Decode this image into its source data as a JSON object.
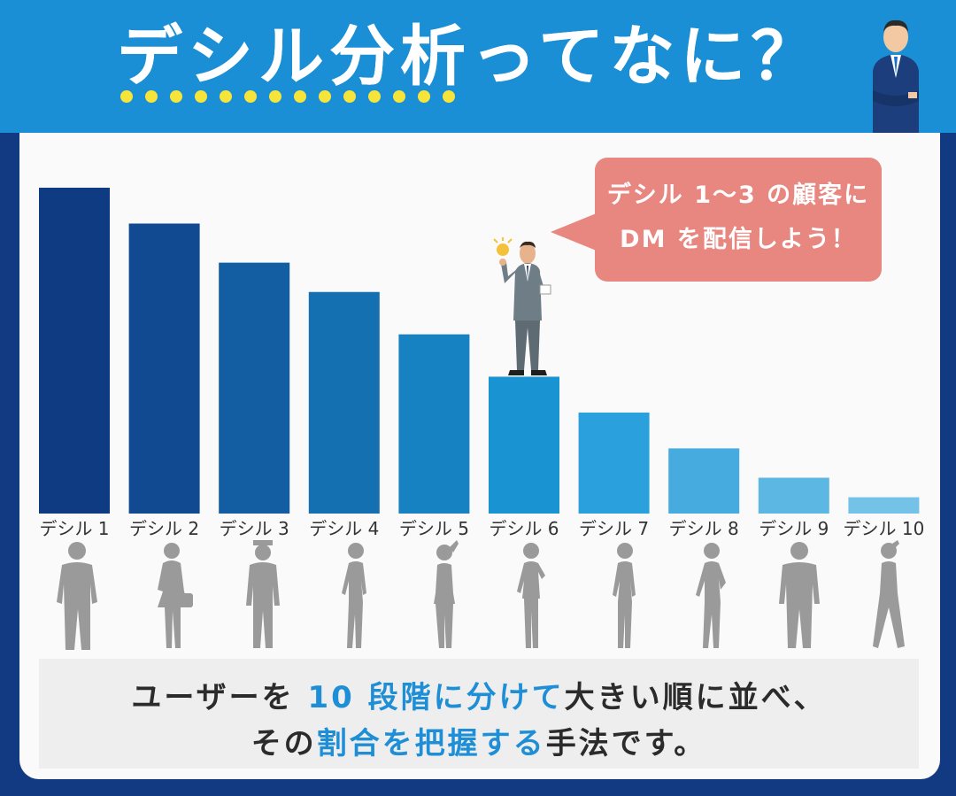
{
  "header": {
    "title": "デシル分析ってなに？"
  },
  "bubble": {
    "line1": "デシル 1〜3 の顧客に",
    "line2": "DM を配信しよう！"
  },
  "caption": {
    "line1_a": "ユーザーを ",
    "line1_b": "10 段階に分けて",
    "line1_c": "大きい順に並べ、",
    "line2_a": "その",
    "line2_b": "割合を把握する",
    "line2_c": "手法です。"
  },
  "colors": {
    "header": "#1a8fd6",
    "frame": "#123a82",
    "bubble": "#e88680",
    "highlight": "#1e8fd6",
    "dots": "#f7e43a"
  },
  "chart_data": {
    "type": "bar",
    "categories": [
      "デシル 1",
      "デシル 2",
      "デシル 3",
      "デシル 4",
      "デシル 5",
      "デシル 6",
      "デシル 7",
      "デシル 8",
      "デシル 9",
      "デシル 10"
    ],
    "values": [
      100,
      89,
      77,
      68,
      55,
      42,
      31,
      20,
      11,
      5
    ],
    "ylim": [
      0,
      100
    ],
    "grid": false,
    "legend": "none",
    "colors": [
      "#0f3b83",
      "#124a92",
      "#135ea3",
      "#1570b2",
      "#1782c2",
      "#1a93d3",
      "#2aa1dc",
      "#46ace0",
      "#5db7e3",
      "#74c2e7"
    ]
  }
}
